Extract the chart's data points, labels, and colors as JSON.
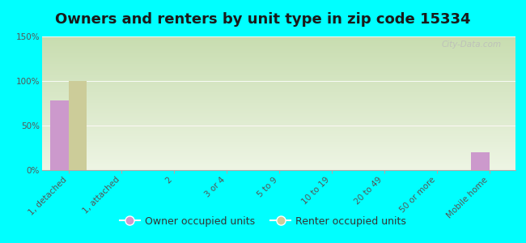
{
  "title": "Owners and renters by unit type in zip code 15334",
  "categories": [
    "1, detached",
    "1, attached",
    "2",
    "3 or 4",
    "5 to 9",
    "10 to 19",
    "20 to 49",
    "50 or more",
    "Mobile home"
  ],
  "owner_values": [
    78,
    0,
    0,
    0,
    0,
    0,
    0,
    0,
    20
  ],
  "renter_values": [
    100,
    0,
    0,
    0,
    0,
    0,
    0,
    0,
    0
  ],
  "owner_color": "#cc99cc",
  "renter_color": "#cccc99",
  "background_color": "#00ffff",
  "plot_bg_top": "#c8ddb0",
  "plot_bg_bottom": "#eef5e4",
  "ylim": [
    0,
    150
  ],
  "yticks": [
    0,
    50,
    100,
    150
  ],
  "ytick_labels": [
    "0%",
    "50%",
    "100%",
    "150%"
  ],
  "bar_width": 0.35,
  "watermark": "City-Data.com",
  "legend_owner": "Owner occupied units",
  "legend_renter": "Renter occupied units",
  "title_fontsize": 13,
  "tick_fontsize": 7.5,
  "legend_fontsize": 9
}
